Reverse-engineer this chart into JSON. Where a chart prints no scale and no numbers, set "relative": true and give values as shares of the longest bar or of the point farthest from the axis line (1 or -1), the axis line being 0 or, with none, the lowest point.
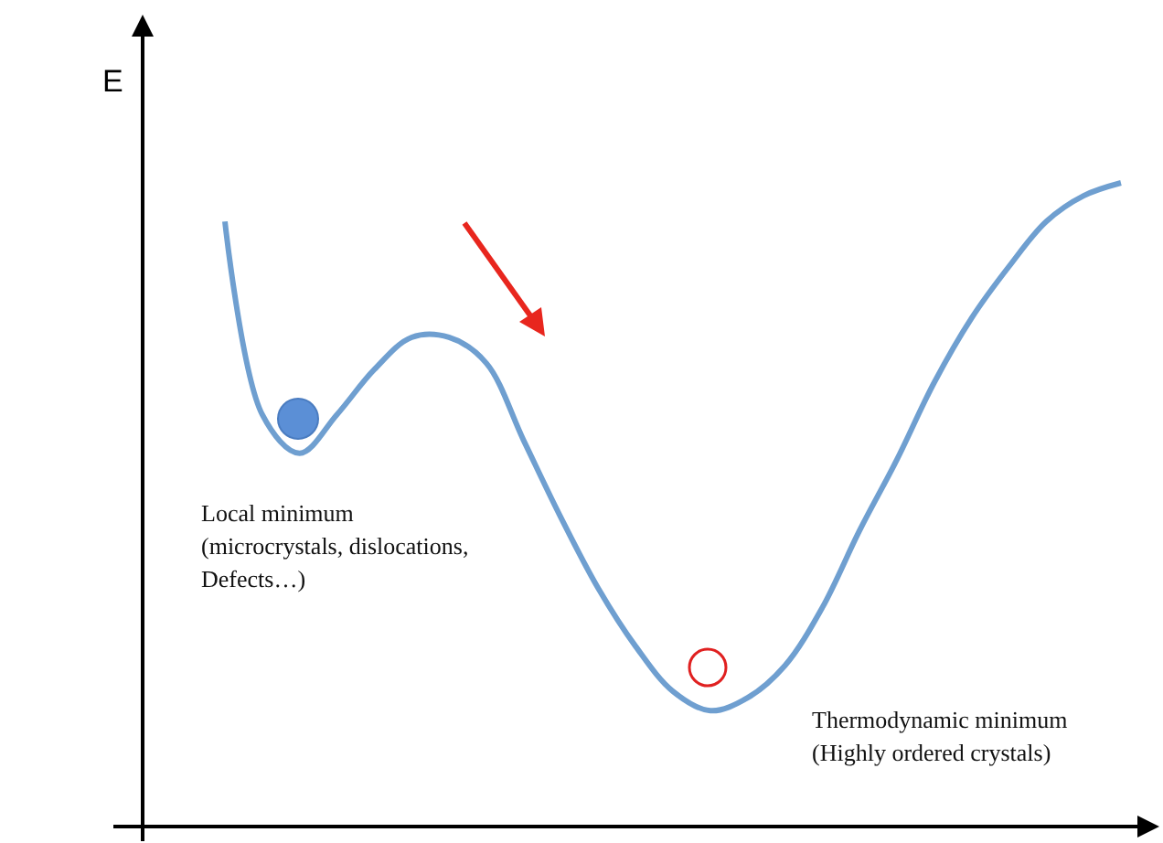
{
  "chart_data": {
    "type": "line",
    "relative": true,
    "ylabel": "E",
    "color": "#6f9fd0",
    "marker": "none",
    "line_style": "solid",
    "tick_labels": false,
    "categories": [
      null,
      null,
      null,
      null,
      null,
      null,
      null,
      null,
      null,
      null,
      null,
      null,
      null,
      null,
      null,
      null,
      null,
      null,
      null,
      null,
      null,
      null,
      null,
      null,
      null
    ],
    "values": [
      0.94,
      0.64,
      0.58,
      0.64,
      0.71,
      0.76,
      0.76,
      0.72,
      0.6,
      0.48,
      0.37,
      0.28,
      0.21,
      0.18,
      0.2,
      0.25,
      0.34,
      0.46,
      0.57,
      0.69,
      0.79,
      0.87,
      0.94,
      0.98,
      1.0
    ],
    "annotations": [
      "Local minimum\n(microcrystals, dislocations,\nDefects…)",
      "Thermodynamic minimum\n(Highly ordered crystals)"
    ]
  }
}
